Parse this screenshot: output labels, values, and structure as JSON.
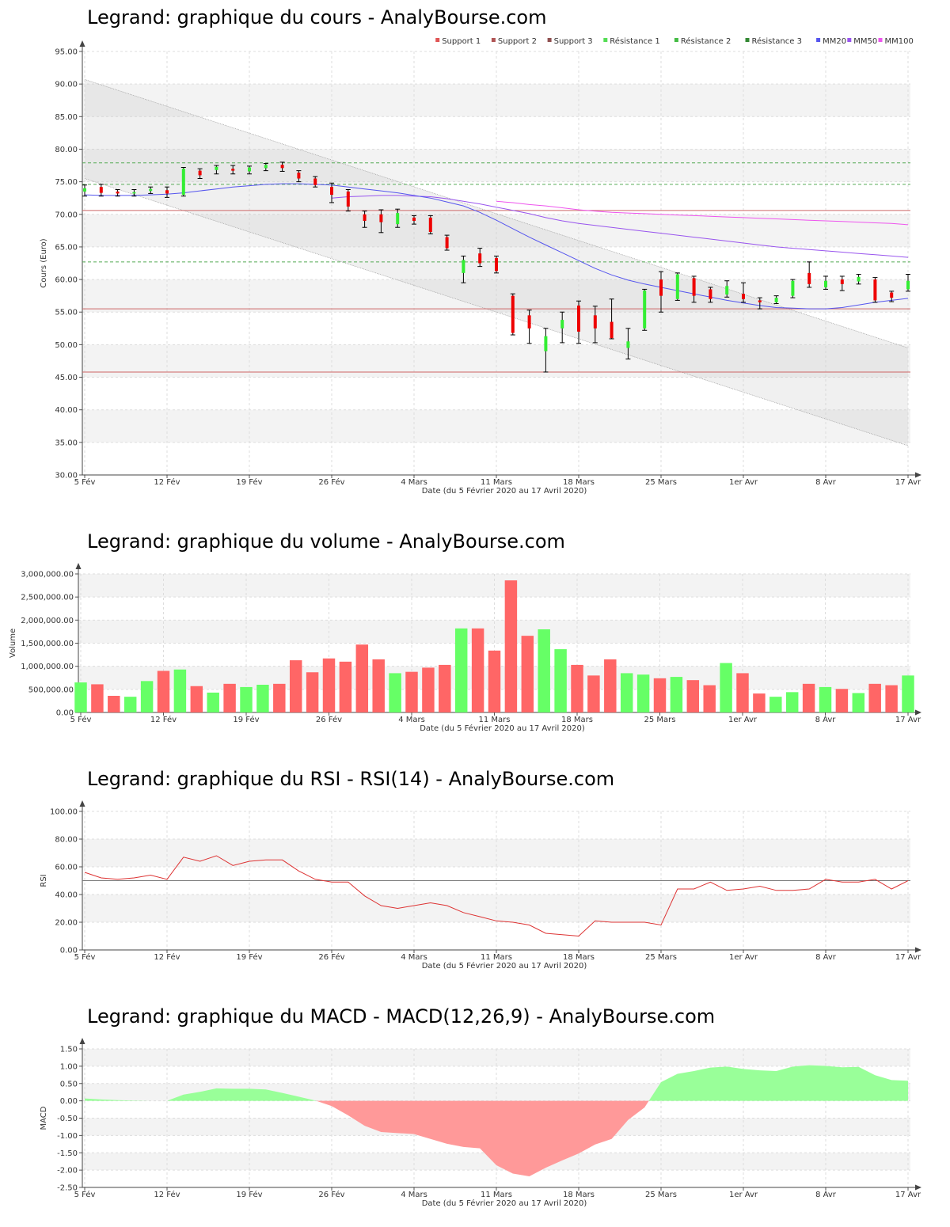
{
  "chart_data": [
    {
      "type": "candlestick",
      "title": "Legrand: graphique du cours - AnalyBourse.com",
      "xlabel": "Date (du 5 Février 2020 au 17 Avril 2020)",
      "ylabel": "Cours (Euro)",
      "ylim": [
        30,
        95
      ],
      "y_ticks": [
        "30.00",
        "35.00",
        "40.00",
        "45.00",
        "50.00",
        "55.00",
        "60.00",
        "65.00",
        "70.00",
        "75.00",
        "80.00",
        "85.00",
        "90.00",
        "95.00"
      ],
      "x_ticks": [
        {
          "label": "5 Fév",
          "index": 0
        },
        {
          "label": "12 Fév",
          "index": 5
        },
        {
          "label": "19 Fév",
          "index": 10
        },
        {
          "label": "26 Fév",
          "index": 15
        },
        {
          "label": "4 Mars",
          "index": 20
        },
        {
          "label": "11 Mars",
          "index": 25
        },
        {
          "label": "18 Mars",
          "index": 30
        },
        {
          "label": "25 Mars",
          "index": 35
        },
        {
          "label": "1er Avr",
          "index": 40
        },
        {
          "label": "8 Avr",
          "index": 45
        },
        {
          "label": "17 Avr",
          "index": 50
        }
      ],
      "legend": [
        {
          "name": "Support 1",
          "color": "#e05555"
        },
        {
          "name": "Support 2",
          "color": "#b05555"
        },
        {
          "name": "Support 3",
          "color": "#905050"
        },
        {
          "name": "Résistance 1",
          "color": "#55dd55"
        },
        {
          "name": "Résistance 2",
          "color": "#44bb44"
        },
        {
          "name": "Résistance 3",
          "color": "#338833"
        },
        {
          "name": "MM20",
          "color": "#5555ee"
        },
        {
          "name": "MM50",
          "color": "#9955ee"
        },
        {
          "name": "MM100",
          "color": "#ee55ee"
        }
      ],
      "levels": {
        "support": [
          55.5,
          45.8,
          70.6
        ],
        "resistance": [
          62.7,
          74.6,
          77.9
        ]
      },
      "channel": {
        "upper": [
          90.7,
          49.5
        ],
        "lower": [
          75.5,
          34.5
        ]
      },
      "ohlc": [
        [
          73.5,
          74.5,
          72.8,
          74.0
        ],
        [
          74.2,
          74.6,
          72.8,
          73.3
        ],
        [
          73.5,
          73.8,
          72.8,
          73.2
        ],
        [
          73.2,
          73.8,
          72.8,
          73.4
        ],
        [
          73.6,
          74.2,
          73.2,
          73.9
        ],
        [
          73.7,
          74.2,
          72.6,
          73.2
        ],
        [
          73.0,
          77.2,
          72.8,
          77.0
        ],
        [
          76.7,
          77.0,
          75.5,
          76.0
        ],
        [
          76.8,
          77.5,
          76.2,
          77.3
        ],
        [
          77.0,
          77.5,
          76.2,
          76.7
        ],
        [
          76.6,
          77.4,
          76.2,
          77.2
        ],
        [
          77.1,
          77.8,
          76.7,
          77.6
        ],
        [
          77.6,
          78.0,
          76.6,
          77.1
        ],
        [
          76.4,
          76.7,
          75.0,
          75.5
        ],
        [
          75.5,
          75.8,
          74.2,
          74.5
        ],
        [
          74.2,
          74.8,
          71.8,
          73.0
        ],
        [
          73.5,
          73.8,
          70.5,
          71.2
        ],
        [
          70.0,
          70.5,
          68.0,
          69.0
        ],
        [
          70.0,
          70.7,
          67.2,
          68.8
        ],
        [
          68.5,
          70.8,
          68.0,
          70.2
        ],
        [
          69.5,
          69.8,
          68.5,
          69.0
        ],
        [
          69.5,
          69.8,
          67.0,
          67.3
        ],
        [
          66.5,
          66.8,
          64.5,
          64.8
        ],
        [
          61.0,
          63.6,
          59.5,
          63.0
        ],
        [
          64.0,
          64.8,
          62.0,
          62.5
        ],
        [
          63.3,
          63.6,
          61.0,
          61.3
        ],
        [
          57.5,
          57.8,
          51.5,
          51.8
        ],
        [
          54.5,
          55.3,
          50.2,
          52.5
        ],
        [
          49.0,
          52.5,
          45.8,
          51.3
        ],
        [
          52.5,
          55.0,
          50.3,
          53.8
        ],
        [
          56.0,
          56.7,
          50.2,
          52.0
        ],
        [
          54.5,
          55.9,
          50.3,
          52.5
        ],
        [
          53.5,
          57.0,
          50.9,
          51.0
        ],
        [
          49.5,
          52.5,
          47.8,
          50.5
        ],
        [
          52.5,
          58.5,
          52.2,
          58.3
        ],
        [
          60.0,
          61.2,
          55.0,
          57.5
        ],
        [
          57.0,
          61.0,
          56.8,
          60.8
        ],
        [
          60.2,
          60.5,
          56.5,
          57.5
        ],
        [
          58.5,
          58.8,
          56.5,
          57.0
        ],
        [
          57.7,
          59.8,
          57.3,
          59.0
        ],
        [
          57.8,
          59.5,
          56.5,
          57.0
        ],
        [
          56.8,
          57.2,
          55.5,
          56.5
        ],
        [
          56.5,
          57.5,
          56.3,
          57.2
        ],
        [
          57.5,
          60.0,
          57.2,
          59.8
        ],
        [
          61.0,
          62.7,
          58.8,
          59.3
        ],
        [
          58.8,
          60.5,
          58.5,
          59.8
        ],
        [
          60.0,
          60.5,
          58.3,
          59.3
        ],
        [
          59.7,
          60.8,
          59.3,
          60.4
        ],
        [
          60.0,
          60.3,
          56.5,
          56.8
        ],
        [
          58.0,
          58.2,
          56.6,
          57.2
        ],
        [
          58.5,
          60.8,
          58.2,
          59.8
        ]
      ],
      "ma20": [
        73.0,
        72.9,
        72.9,
        72.9,
        73.0,
        73.1,
        73.3,
        73.6,
        73.9,
        74.2,
        74.4,
        74.6,
        74.7,
        74.7,
        74.6,
        74.5,
        74.2,
        73.9,
        73.6,
        73.3,
        72.9,
        72.5,
        71.9,
        71.3,
        70.3,
        69.1,
        67.8,
        66.5,
        65.3,
        64.1,
        62.9,
        61.7,
        60.7,
        59.9,
        59.3,
        58.8,
        58.3,
        57.8,
        57.3,
        56.8,
        56.4,
        56.0,
        55.7,
        55.6,
        55.5,
        55.5,
        55.7,
        56.1,
        56.5,
        56.8,
        57.1
      ],
      "ma50": [
        null,
        null,
        null,
        null,
        null,
        null,
        null,
        null,
        null,
        null,
        null,
        null,
        null,
        null,
        null,
        72.5,
        72.7,
        72.8,
        72.9,
        72.9,
        72.8,
        72.7,
        72.4,
        72.0,
        71.6,
        71.1,
        70.6,
        70.1,
        69.5,
        69.0,
        68.6,
        68.3,
        68.0,
        67.7,
        67.4,
        67.1,
        66.8,
        66.5,
        66.2,
        65.9,
        65.6,
        65.3,
        65.0,
        64.8,
        64.6,
        64.4,
        64.2,
        64.0,
        63.8,
        63.6,
        63.4
      ],
      "ma100": [
        null,
        null,
        null,
        null,
        null,
        null,
        null,
        null,
        null,
        null,
        null,
        null,
        null,
        null,
        null,
        null,
        null,
        null,
        null,
        null,
        null,
        null,
        null,
        null,
        null,
        72.0,
        71.8,
        71.5,
        71.3,
        71.0,
        70.7,
        70.5,
        70.3,
        70.2,
        70.1,
        70.0,
        69.9,
        69.8,
        69.7,
        69.6,
        69.5,
        69.4,
        69.3,
        69.2,
        69.1,
        69.0,
        68.9,
        68.8,
        68.7,
        68.6,
        68.4
      ]
    },
    {
      "type": "bar",
      "title": "Legrand: graphique du volume - AnalyBourse.com",
      "xlabel": "Date (du 5 Février 2020 au 17 Avril 2020)",
      "ylabel": "Volume",
      "ylim": [
        0,
        3000000
      ],
      "y_ticks": [
        "0.00",
        "500,000.00",
        "1,000,000.00",
        "1,500,000.00",
        "2,000,000.00",
        "2,500,000.00",
        "3,000,000.00"
      ],
      "values": [
        650000,
        610000,
        360000,
        340000,
        680000,
        900000,
        930000,
        570000,
        430000,
        620000,
        550000,
        600000,
        620000,
        1130000,
        870000,
        1170000,
        1100000,
        1470000,
        1150000,
        850000,
        880000,
        970000,
        1030000,
        1820000,
        1820000,
        1340000,
        2860000,
        1660000,
        1800000,
        1370000,
        1030000,
        800000,
        1150000,
        850000,
        820000,
        740000,
        770000,
        700000,
        590000,
        1070000,
        850000,
        410000,
        340000,
        440000,
        620000,
        550000,
        510000,
        420000,
        620000,
        590000,
        800000
      ],
      "colors_by_direction": {
        "up": "#66ff66",
        "down": "#ff6666"
      }
    },
    {
      "type": "line",
      "title": "Legrand: graphique du RSI - RSI(14) - AnalyBourse.com",
      "xlabel": "Date (du 5 Février 2020 au 17 Avril 2020)",
      "ylabel": "RSI",
      "ylim": [
        0,
        100
      ],
      "y_ticks": [
        "0.00",
        "20.00",
        "40.00",
        "60.00",
        "80.00",
        "100.00"
      ],
      "reference": 50,
      "values": [
        56,
        52,
        51,
        52,
        54,
        51,
        67,
        64,
        68,
        61,
        64,
        65,
        65,
        57,
        51,
        49,
        49,
        39,
        32,
        30,
        32,
        34,
        32,
        27,
        24,
        21,
        20,
        18,
        12,
        11,
        10,
        21,
        20,
        20,
        20,
        18,
        44,
        44,
        49,
        43,
        44,
        46,
        43,
        43,
        44,
        51,
        49,
        49,
        51,
        44,
        50
      ]
    },
    {
      "type": "area",
      "title": "Legrand: graphique du MACD - MACD(12,26,9) - AnalyBourse.com",
      "xlabel": "Date (du 5 Février 2020 au 17 Avril 2020)",
      "ylabel": "MACD",
      "ylim": [
        -2.5,
        1.5
      ],
      "y_ticks": [
        "-2.50",
        "-2.00",
        "-1.50",
        "-1.00",
        "-0.50",
        "0.00",
        "0.50",
        "1.00",
        "1.50"
      ],
      "values": [
        0.07,
        0.04,
        0.02,
        0.01,
        0.0,
        0.0,
        0.18,
        0.26,
        0.36,
        0.35,
        0.35,
        0.33,
        0.23,
        0.12,
        0.01,
        -0.15,
        -0.42,
        -0.72,
        -0.9,
        -0.93,
        -0.96,
        -1.1,
        -1.24,
        -1.33,
        -1.37,
        -1.86,
        -2.1,
        -2.18,
        -1.93,
        -1.72,
        -1.52,
        -1.26,
        -1.1,
        -0.55,
        -0.19,
        0.54,
        0.78,
        0.86,
        0.96,
        0.99,
        0.92,
        0.88,
        0.86,
        0.99,
        1.03,
        1.01,
        0.97,
        0.98,
        0.74,
        0.6,
        0.58
      ],
      "colors": {
        "positive": "#99ff99",
        "negative": "#ff9999"
      }
    }
  ]
}
